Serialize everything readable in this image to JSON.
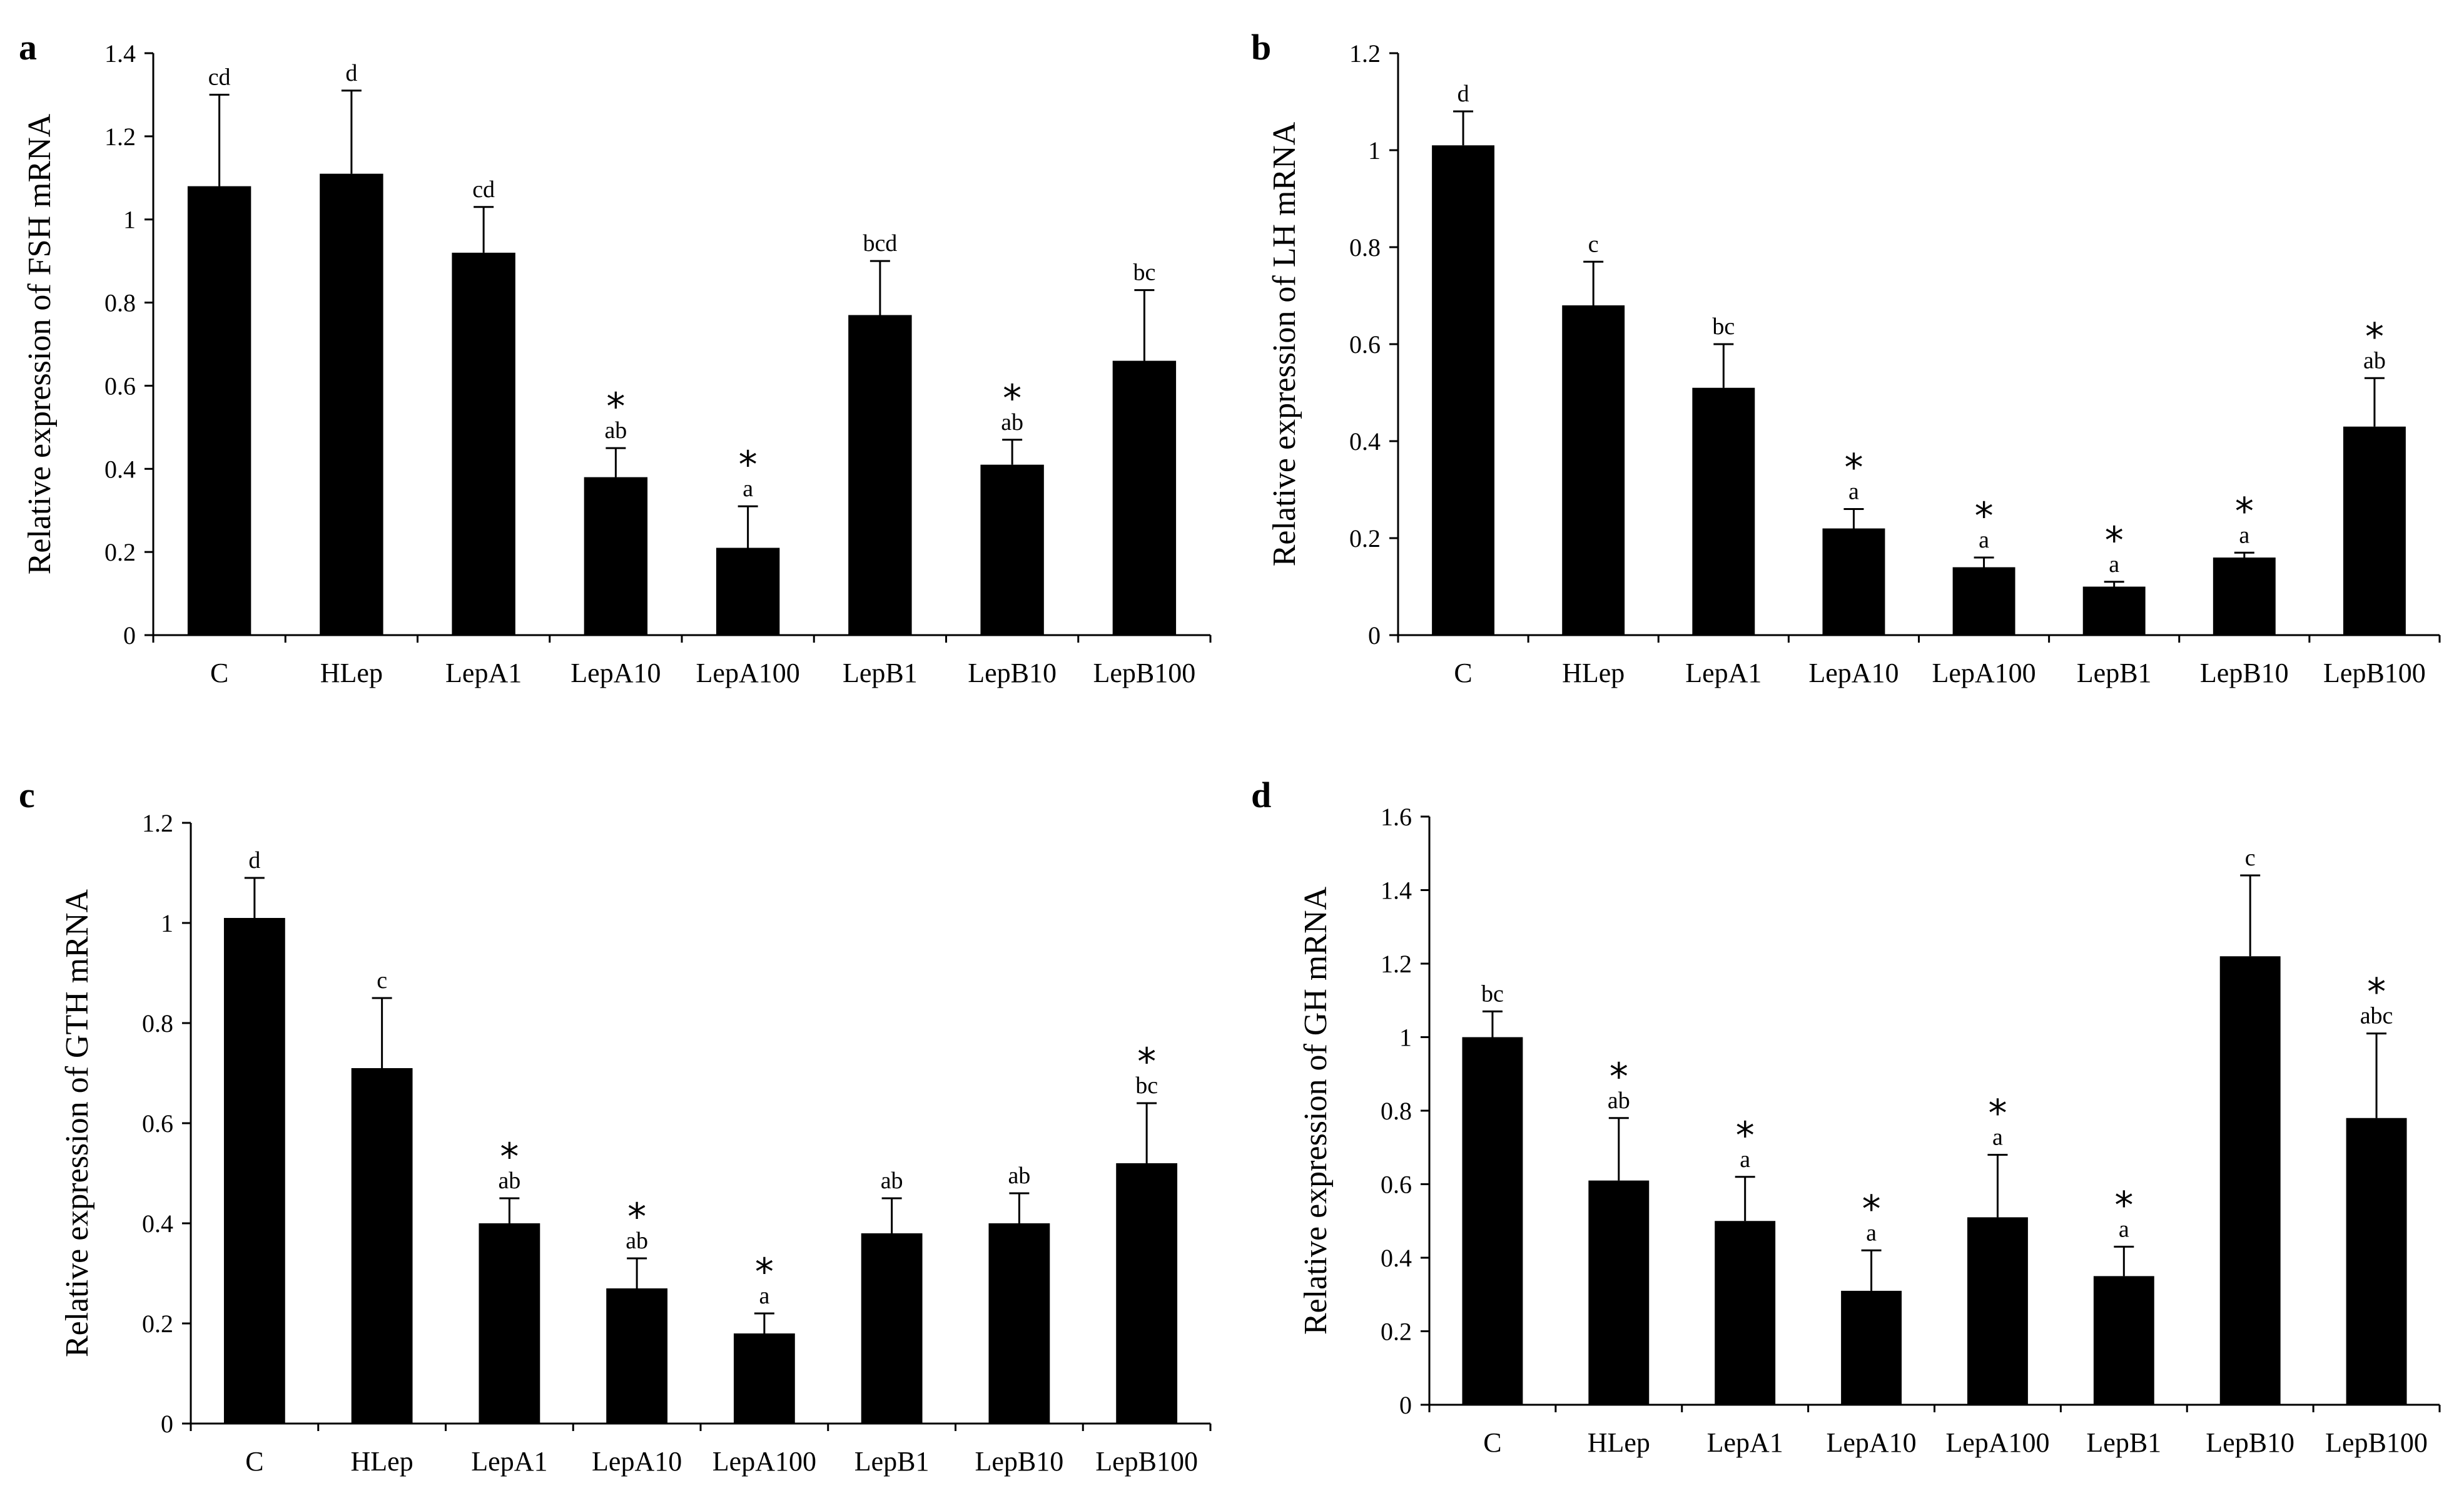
{
  "chart_data": [
    {
      "type": "bar",
      "panel": "a",
      "ylabel": "Relative  expression of  FSH mRNA",
      "xlabel": "",
      "ylim": [
        0,
        1.4
      ],
      "yticks": [
        0,
        0.2,
        0.4,
        0.6,
        0.8,
        1,
        1.2,
        1.4
      ],
      "ytick_labels": [
        "0",
        "0.2",
        "0.4",
        "0.6",
        "0.8",
        "1",
        "1.2",
        "1.4"
      ],
      "categories": [
        "C",
        "HLep",
        "LepA1",
        "LepA10",
        "LepA100",
        "LepB1",
        "LepB10",
        "LepB100"
      ],
      "values": [
        1.08,
        1.11,
        0.92,
        0.38,
        0.21,
        0.77,
        0.41,
        0.66
      ],
      "errors": [
        0.22,
        0.2,
        0.11,
        0.07,
        0.1,
        0.13,
        0.06,
        0.17
      ],
      "sig_letters": [
        "cd",
        "d",
        "cd",
        "ab",
        "a",
        "bcd",
        "ab",
        "bc"
      ],
      "asterisk": [
        false,
        false,
        false,
        true,
        true,
        false,
        true,
        false
      ],
      "color": "#000000"
    },
    {
      "type": "bar",
      "panel": "b",
      "ylabel": "Relative  expression of  LH mRNA",
      "xlabel": "",
      "ylim": [
        0,
        1.2
      ],
      "yticks": [
        0,
        0.2,
        0.4,
        0.6,
        0.8,
        1,
        1.2
      ],
      "ytick_labels": [
        "0",
        "0.2",
        "0.4",
        "0.6",
        "0.8",
        "1",
        "1.2"
      ],
      "categories": [
        "C",
        "HLep",
        "LepA1",
        "LepA10",
        "LepA100",
        "LepB1",
        "LepB10",
        "LepB100"
      ],
      "values": [
        1.01,
        0.68,
        0.51,
        0.22,
        0.14,
        0.1,
        0.16,
        0.43
      ],
      "errors": [
        0.07,
        0.09,
        0.09,
        0.04,
        0.02,
        0.01,
        0.01,
        0.1
      ],
      "sig_letters": [
        "d",
        "c",
        "bc",
        "a",
        "a",
        "a",
        "a",
        "ab"
      ],
      "asterisk": [
        false,
        false,
        false,
        true,
        true,
        true,
        true,
        true
      ],
      "color": "#000000"
    },
    {
      "type": "bar",
      "panel": "c",
      "ylabel": "Relative  expression of  GTH mRNA",
      "xlabel": "",
      "ylim": [
        0,
        1.2
      ],
      "yticks": [
        0,
        0.2,
        0.4,
        0.6,
        0.8,
        1,
        1.2
      ],
      "ytick_labels": [
        "0",
        "0.2",
        "0.4",
        "0.6",
        "0.8",
        "1",
        "1.2"
      ],
      "categories": [
        "C",
        "HLep",
        "LepA1",
        "LepA10",
        "LepA100",
        "LepB1",
        "LepB10",
        "LepB100"
      ],
      "values": [
        1.01,
        0.71,
        0.4,
        0.27,
        0.18,
        0.38,
        0.4,
        0.52
      ],
      "errors": [
        0.08,
        0.14,
        0.05,
        0.06,
        0.04,
        0.07,
        0.06,
        0.12
      ],
      "sig_letters": [
        "d",
        "c",
        "ab",
        "ab",
        "a",
        "ab",
        "ab",
        "bc"
      ],
      "asterisk": [
        false,
        false,
        true,
        true,
        true,
        false,
        false,
        true
      ],
      "color": "#000000"
    },
    {
      "type": "bar",
      "panel": "d",
      "ylabel": "Relative  expression of  GH mRNA",
      "xlabel": "",
      "ylim": [
        0,
        1.6
      ],
      "yticks": [
        0,
        0.2,
        0.4,
        0.6,
        0.8,
        1,
        1.2,
        1.4,
        1.6
      ],
      "ytick_labels": [
        "0",
        "0.2",
        "0.4",
        "0.6",
        "0.8",
        "1",
        "1.2",
        "1.4",
        "1.6"
      ],
      "categories": [
        "C",
        "HLep",
        "LepA1",
        "LepA10",
        "LepA100",
        "LepB1",
        "LepB10",
        "LepB100"
      ],
      "values": [
        1.0,
        0.61,
        0.5,
        0.31,
        0.51,
        0.35,
        1.22,
        0.78
      ],
      "errors": [
        0.07,
        0.17,
        0.12,
        0.11,
        0.17,
        0.08,
        0.22,
        0.23
      ],
      "sig_letters": [
        "bc",
        "ab",
        "a",
        "a",
        "a",
        "a",
        "c",
        "abc"
      ],
      "asterisk": [
        false,
        true,
        true,
        true,
        true,
        true,
        false,
        true
      ],
      "color": "#000000"
    }
  ]
}
